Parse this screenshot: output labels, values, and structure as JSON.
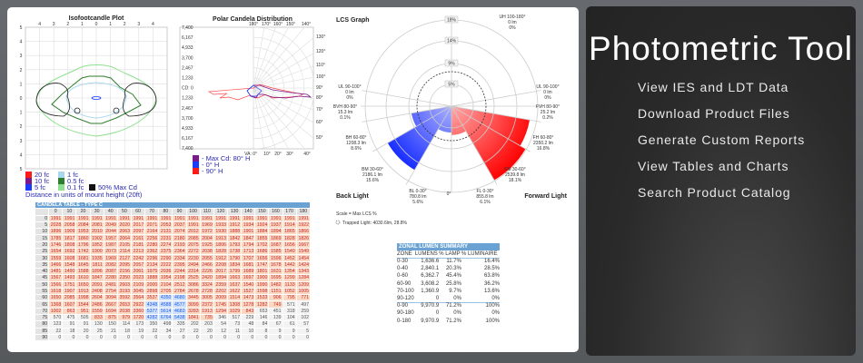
{
  "iso": {
    "title": "Isofootcandle Plot",
    "top_ticks": [
      "4",
      "3",
      "2",
      "1",
      "0",
      "1",
      "2",
      "3",
      "4"
    ],
    "left_ticks": [
      "5",
      "4",
      "3",
      "2",
      "1",
      "0",
      "1",
      "2",
      "3",
      "4",
      "5"
    ],
    "legend": [
      {
        "label": "20 fc",
        "color": "#ff1a1a"
      },
      {
        "label": "10 fc",
        "color": "#7b1a8c"
      },
      {
        "label": "5 fc",
        "color": "#1a3cff"
      },
      {
        "label": "1 fc",
        "color": "#a9d8ee"
      },
      {
        "label": "0.5 fc",
        "color": "#2f7d2f"
      },
      {
        "label": "0.1 fc",
        "color": "#8ee08e"
      },
      {
        "label": "50% Max Cd",
        "color": "#111111"
      }
    ],
    "note": "Distance in units of mount height (20ft)"
  },
  "polar": {
    "title": "Polar Candela Distribution",
    "cd_ticks": [
      "7,400",
      "6,167",
      "4,933",
      "3,700",
      "2,467",
      "1,233",
      "CD: 0",
      "1,233",
      "2,467",
      "3,700",
      "4,933",
      "6,167",
      "7,400"
    ],
    "top_angles": [
      "180°",
      "170°",
      "160°",
      "150°",
      "140°"
    ],
    "right_angles": [
      "130°",
      "120°",
      "110°",
      "100°",
      "90°",
      "80°",
      "70°",
      "60°",
      "50°"
    ],
    "bottom_angles": [
      "VA: 0°",
      "10°",
      "20°",
      "30°",
      "40°"
    ],
    "legend": [
      {
        "label": "- Max Cd: 80° H",
        "color": "#7b1a8c"
      },
      {
        "label": "- 0° H",
        "color": "#1a3cff"
      },
      {
        "label": "- 90° H",
        "color": "#ff1a1a"
      }
    ]
  },
  "lcs": {
    "title": "LCS Graph",
    "rings": [
      "5%",
      "9%",
      "14%",
      "18%"
    ],
    "back_label": "Back Light",
    "forward_label": "Forward Light",
    "zero_label": "0°",
    "scale_note": "Scale = Max LCS %",
    "trapped": "Trapped Light: 4030.6lm, 28.8%",
    "zones": [
      {
        "name": "UH 100-180°",
        "lumens": "0 lm",
        "pct": "0%"
      },
      {
        "name": "UL 90-100°",
        "lumens": "0 lm",
        "pct": "0%"
      },
      {
        "name": "FVH 80-90°",
        "lumens": "25.2 lm",
        "pct": "0.2%"
      },
      {
        "name": "FH 60-80°",
        "lumens": "2350.2 lm",
        "pct": "16.8%",
        "value": 16.8
      },
      {
        "name": "FM 30-60°",
        "lumens": "2539.8 lm",
        "pct": "18.1%",
        "value": 18.1
      },
      {
        "name": "FL 0-30°",
        "lumens": "855.8 lm",
        "pct": "6.1%",
        "value": 6.1
      },
      {
        "name": "BL 0-30°",
        "lumens": "780.8 lm",
        "pct": "5.6%",
        "value": 5.6
      },
      {
        "name": "BM 30-60°",
        "lumens": "2186.1 lm",
        "pct": "15.6%",
        "value": 15.6
      },
      {
        "name": "BH 60-80°",
        "lumens": "1208.3 lm",
        "pct": "8.6%",
        "value": 8.6
      },
      {
        "name": "BVH 80-90°",
        "lumens": "15.3 lm",
        "pct": "0.1%"
      },
      {
        "name": "UL 90-100°",
        "lumens": "0 lm",
        "pct": "0%"
      }
    ]
  },
  "candela": {
    "title": "CANDELA TABLE - TYPE C",
    "columns": [
      "0",
      "10",
      "20",
      "30",
      "40",
      "50",
      "60",
      "70",
      "80",
      "90",
      "100",
      "110",
      "120",
      "130",
      "140",
      "150",
      "160",
      "170",
      "180"
    ],
    "rows": [
      {
        "va": "0",
        "v": [
          1991,
          1991,
          1991,
          1991,
          1991,
          1991,
          1991,
          1991,
          1991,
          1991,
          1991,
          1991,
          1991,
          1991,
          1991,
          1991,
          1991,
          1991,
          1991
        ]
      },
      {
        "va": "5",
        "v": [
          2028,
          2058,
          2084,
          2081,
          2049,
          2020,
          2017,
          2071,
          2053,
          2037,
          1991,
          1969,
          1933,
          1912,
          1934,
          1924,
          1937,
          1914,
          1922
        ]
      },
      {
        "va": "10",
        "v": [
          1896,
          1909,
          1953,
          2010,
          2044,
          2063,
          2097,
          2164,
          2131,
          2074,
          2012,
          1972,
          1930,
          1888,
          1901,
          1884,
          1894,
          1865,
          1866
        ]
      },
      {
        "va": "15",
        "v": [
          1785,
          1817,
          1860,
          1902,
          1957,
          2064,
          2161,
          2256,
          2231,
          2180,
          2085,
          2004,
          1913,
          1842,
          1847,
          1855,
          1869,
          1828,
          1826
        ]
      },
      {
        "va": "20",
        "v": [
          1746,
          1808,
          1796,
          1852,
          1987,
          2105,
          2181,
          2280,
          2274,
          2193,
          2075,
          1925,
          1806,
          1793,
          1794,
          1702,
          1687,
          1656,
          1667
        ]
      },
      {
        "va": "25",
        "v": [
          1654,
          1692,
          1742,
          1900,
          2073,
          2114,
          2213,
          2362,
          2375,
          2364,
          2272,
          2038,
          1828,
          1738,
          1713,
          1686,
          1585,
          1540,
          1549
        ]
      },
      {
        "va": "30",
        "v": [
          1559,
          1608,
          1681,
          1935,
          1969,
          2127,
          2242,
          2296,
          2290,
          2334,
          2230,
          2055,
          1912,
          1790,
          1707,
          1656,
          1596,
          1452,
          1454
        ]
      },
      {
        "va": "35",
        "v": [
          1466,
          1548,
          1645,
          1811,
          2082,
          2095,
          2057,
          2134,
          2222,
          2395,
          2494,
          2466,
          2208,
          1834,
          1681,
          1747,
          1678,
          1442,
          1424
        ]
      },
      {
        "va": "40",
        "v": [
          1481,
          1490,
          1588,
          1896,
          2087,
          2156,
          2061,
          1975,
          2036,
          2244,
          2314,
          2226,
          2017,
          1799,
          1689,
          1801,
          1631,
          1354,
          1343
        ]
      },
      {
        "va": "45",
        "v": [
          1567,
          1493,
          1610,
          1847,
          2280,
          2350,
          2023,
          1888,
          1954,
          2198,
          2525,
          2420,
          1894,
          1663,
          1697,
          1900,
          1695,
          1299,
          1284
        ]
      },
      {
        "va": "50",
        "v": [
          1566,
          1751,
          1650,
          2091,
          2481,
          2603,
          2109,
          2000,
          2104,
          2512,
          3086,
          3324,
          2359,
          1637,
          1540,
          1990,
          1482,
          1133,
          1209
        ]
      },
      {
        "va": "55",
        "v": [
          1618,
          1907,
          1913,
          2408,
          2754,
          3193,
          3045,
          2898,
          2705,
          2784,
          2678,
          2728,
          2202,
          1622,
          1527,
          1598,
          1151,
          1052,
          1005
        ]
      },
      {
        "va": "60",
        "v": [
          1650,
          2085,
          1998,
          2604,
          3094,
          3592,
          3564,
          3537,
          4350,
          4680,
          3445,
          3005,
          2009,
          1514,
          1473,
          1533,
          906,
          795,
          771
        ]
      },
      {
        "va": "65",
        "v": [
          1368,
          1607,
          1544,
          2486,
          2667,
          2653,
          2922,
          4348,
          4588,
          4577,
          3099,
          2372,
          1745,
          1308,
          1278,
          1282,
          749,
          571,
          497
        ]
      },
      {
        "va": "70",
        "v": [
          1002,
          863,
          951,
          1559,
          1694,
          2038,
          3360,
          5377,
          5614,
          4683,
          3283,
          1913,
          1294,
          1029,
          843,
          653,
          451,
          318,
          259
        ]
      },
      {
        "va": "75",
        "v": [
          570,
          475,
          505,
          833,
          875,
          979,
          1720,
          4282,
          6764,
          5438,
          1841,
          735,
          346,
          517,
          229,
          146,
          139,
          104,
          102
        ]
      },
      {
        "va": "80",
        "v": [
          123,
          91,
          91,
          130,
          150,
          114,
          173,
          350,
          498,
          335,
          202,
          203,
          54,
          73,
          48,
          84,
          67,
          61,
          57
        ]
      },
      {
        "va": "85",
        "v": [
          22,
          18,
          20,
          25,
          21,
          18,
          19,
          22,
          34,
          27,
          22,
          20,
          12,
          11,
          10,
          8,
          9,
          9,
          5
        ]
      },
      {
        "va": "90",
        "v": [
          0,
          0,
          0,
          0,
          0,
          0,
          0,
          0,
          0,
          0,
          0,
          0,
          0,
          0,
          0,
          0,
          0,
          0,
          0
        ]
      }
    ]
  },
  "zonal": {
    "title": "ZONAL LUMEN SUMMARY",
    "headers": [
      "ZONE",
      "LUMENS",
      "% LAMP",
      "% LUMINAIRE"
    ],
    "rows": [
      [
        "0-30",
        "1,636.6",
        "11.7%",
        "16.4%"
      ],
      [
        "0-40",
        "2,840.1",
        "20.3%",
        "28.5%"
      ],
      [
        "0-60",
        "6,362.7",
        "45.4%",
        "63.8%"
      ],
      [
        "60-90",
        "3,608.2",
        "25.8%",
        "36.2%"
      ],
      [
        "70-100",
        "1,360.9",
        "9.7%",
        "13.6%"
      ],
      [
        "90-120",
        "0",
        "0%",
        "0%"
      ],
      [
        "0-90",
        "9,970.9",
        "71.2%",
        "100%"
      ],
      [
        "90-180",
        "0",
        "0%",
        "0%"
      ],
      [
        "0-180",
        "9,970.9",
        "71.2%",
        "100%"
      ]
    ]
  },
  "side": {
    "title": "Photometric Tool",
    "links": [
      "View IES and LDT Data",
      "Download Product Files",
      "Generate Custom Reports",
      "View Tables and Charts",
      "Search Product Catalog"
    ]
  }
}
